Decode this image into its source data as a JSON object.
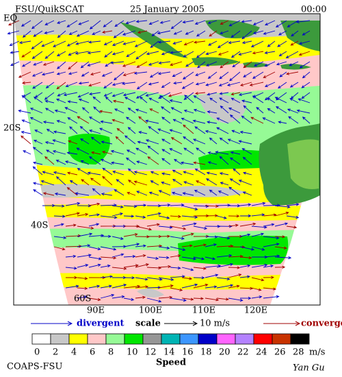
{
  "header": {
    "title": "FSU/QuikSCAT",
    "date": "25 January 2005",
    "time": "00:00"
  },
  "map": {
    "lat_labels": [
      "EQ",
      "20S",
      "40S",
      "60S"
    ],
    "lon_labels": [
      "90E",
      "100E",
      "110E",
      "120E"
    ]
  },
  "legend": {
    "divergent": "divergent",
    "scale": "scale",
    "scale_value": "10 m/s",
    "convergent": "convergent"
  },
  "colorbar": {
    "ticks": [
      0,
      2,
      4,
      6,
      8,
      10,
      12,
      14,
      16,
      18,
      20,
      22,
      24,
      26,
      28
    ],
    "unit": "m/s",
    "label": "Speed",
    "colors": [
      "#ffffff",
      "#c8c8c8",
      "#ffff00",
      "#ffc8c8",
      "#96fa96",
      "#00e600",
      "#969696",
      "#00b4b4",
      "#3c96ff",
      "#0000c8",
      "#ff64ff",
      "#b482ff",
      "#ff0000",
      "#c83200",
      "#000000"
    ]
  },
  "footer": {
    "credit": "COAPS-FSU",
    "author": "Yan Gu"
  }
}
